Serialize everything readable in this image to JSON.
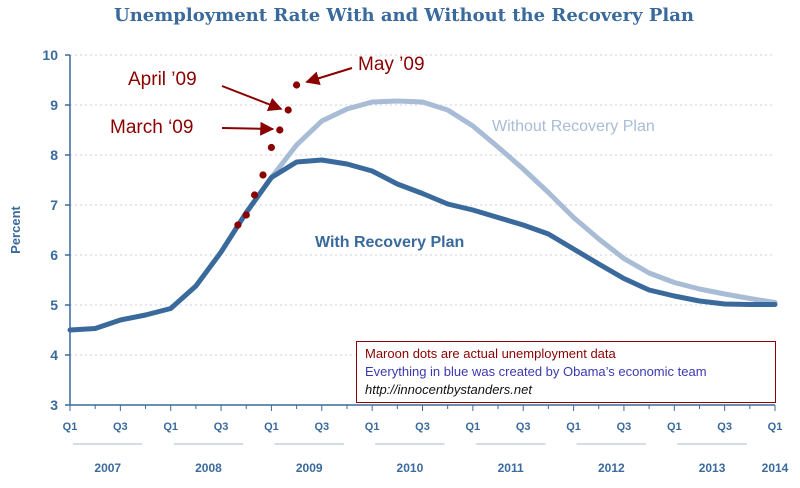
{
  "chart_data": {
    "type": "line",
    "title": "Unemployment Rate With and Without the Recovery Plan",
    "ylabel": "Percent",
    "xlabel": "",
    "ylim": [
      3,
      10
    ],
    "yticks": [
      "3",
      "4",
      "5",
      "6",
      "7",
      "8",
      "9",
      "10"
    ],
    "x_tick_labels": [
      "Q1",
      "Q3",
      "Q1",
      "Q3",
      "Q1",
      "Q3",
      "Q1",
      "Q3",
      "Q1",
      "Q3",
      "Q1",
      "Q3",
      "Q1",
      "Q3",
      "Q1"
    ],
    "year_labels": [
      "2007",
      "2008",
      "2009",
      "2010",
      "2011",
      "2012",
      "2013",
      "2014"
    ],
    "grid": "horizontal dotted",
    "series": [
      {
        "name": "With Recovery Plan",
        "color": "#3a6a9c",
        "x": [
          "2007 Q1",
          "2007 Q2",
          "2007 Q3",
          "2007 Q4",
          "2008 Q1",
          "2008 Q2",
          "2008 Q3",
          "2008 Q4",
          "2009 Q1",
          "2009 Q2",
          "2009 Q3",
          "2009 Q4",
          "2010 Q1",
          "2010 Q2",
          "2010 Q3",
          "2010 Q4",
          "2011 Q1",
          "2011 Q2",
          "2011 Q3",
          "2011 Q4",
          "2012 Q1",
          "2012 Q2",
          "2012 Q3",
          "2012 Q4",
          "2013 Q1",
          "2013 Q2",
          "2013 Q3",
          "2013 Q4",
          "2014 Q1"
        ],
        "values": [
          4.5,
          4.53,
          4.7,
          4.8,
          4.93,
          5.38,
          6.06,
          6.85,
          7.55,
          7.86,
          7.9,
          7.82,
          7.68,
          7.42,
          7.23,
          7.02,
          6.9,
          6.75,
          6.6,
          6.42,
          6.12,
          5.82,
          5.53,
          5.3,
          5.18,
          5.08,
          5.02,
          5.01,
          5.01
        ]
      },
      {
        "name": "Without Recovery Plan",
        "color": "#a8bcd6",
        "x": [
          "2008 Q4",
          "2009 Q1",
          "2009 Q2",
          "2009 Q3",
          "2009 Q4",
          "2010 Q1",
          "2010 Q2",
          "2010 Q3",
          "2010 Q4",
          "2011 Q1",
          "2011 Q2",
          "2011 Q3",
          "2011 Q4",
          "2012 Q1",
          "2012 Q2",
          "2012 Q3",
          "2012 Q4",
          "2013 Q1",
          "2013 Q2",
          "2013 Q3",
          "2013 Q4",
          "2014 Q1"
        ],
        "values": [
          6.85,
          7.55,
          8.2,
          8.68,
          8.92,
          9.06,
          9.08,
          9.06,
          8.9,
          8.58,
          8.16,
          7.72,
          7.25,
          6.75,
          6.32,
          5.93,
          5.64,
          5.45,
          5.32,
          5.22,
          5.13,
          5.05
        ]
      }
    ],
    "actual_data": {
      "color": "#8b0000",
      "points": [
        {
          "month": "2008-09",
          "value": 6.6
        },
        {
          "month": "2008-10",
          "value": 6.8
        },
        {
          "month": "2008-11",
          "value": 7.2
        },
        {
          "month": "2008-12",
          "value": 7.6
        },
        {
          "month": "2009-01",
          "value": 8.15
        },
        {
          "month": "2009-02",
          "value": 8.5
        },
        {
          "month": "2009-03",
          "value": 8.9
        },
        {
          "month": "2009-04",
          "value": 9.4
        }
      ]
    },
    "annotations": [
      "April ’09",
      "May ’09",
      "March ‘09"
    ],
    "series_labels": {
      "with": "With Recovery Plan",
      "without": "Without Recovery Plan"
    }
  },
  "note": {
    "line1": "Maroon dots are actual unemployment data",
    "line2": "Everything in blue was created by Obama’s economic team",
    "line3": "http://innocentbystanders.net"
  }
}
